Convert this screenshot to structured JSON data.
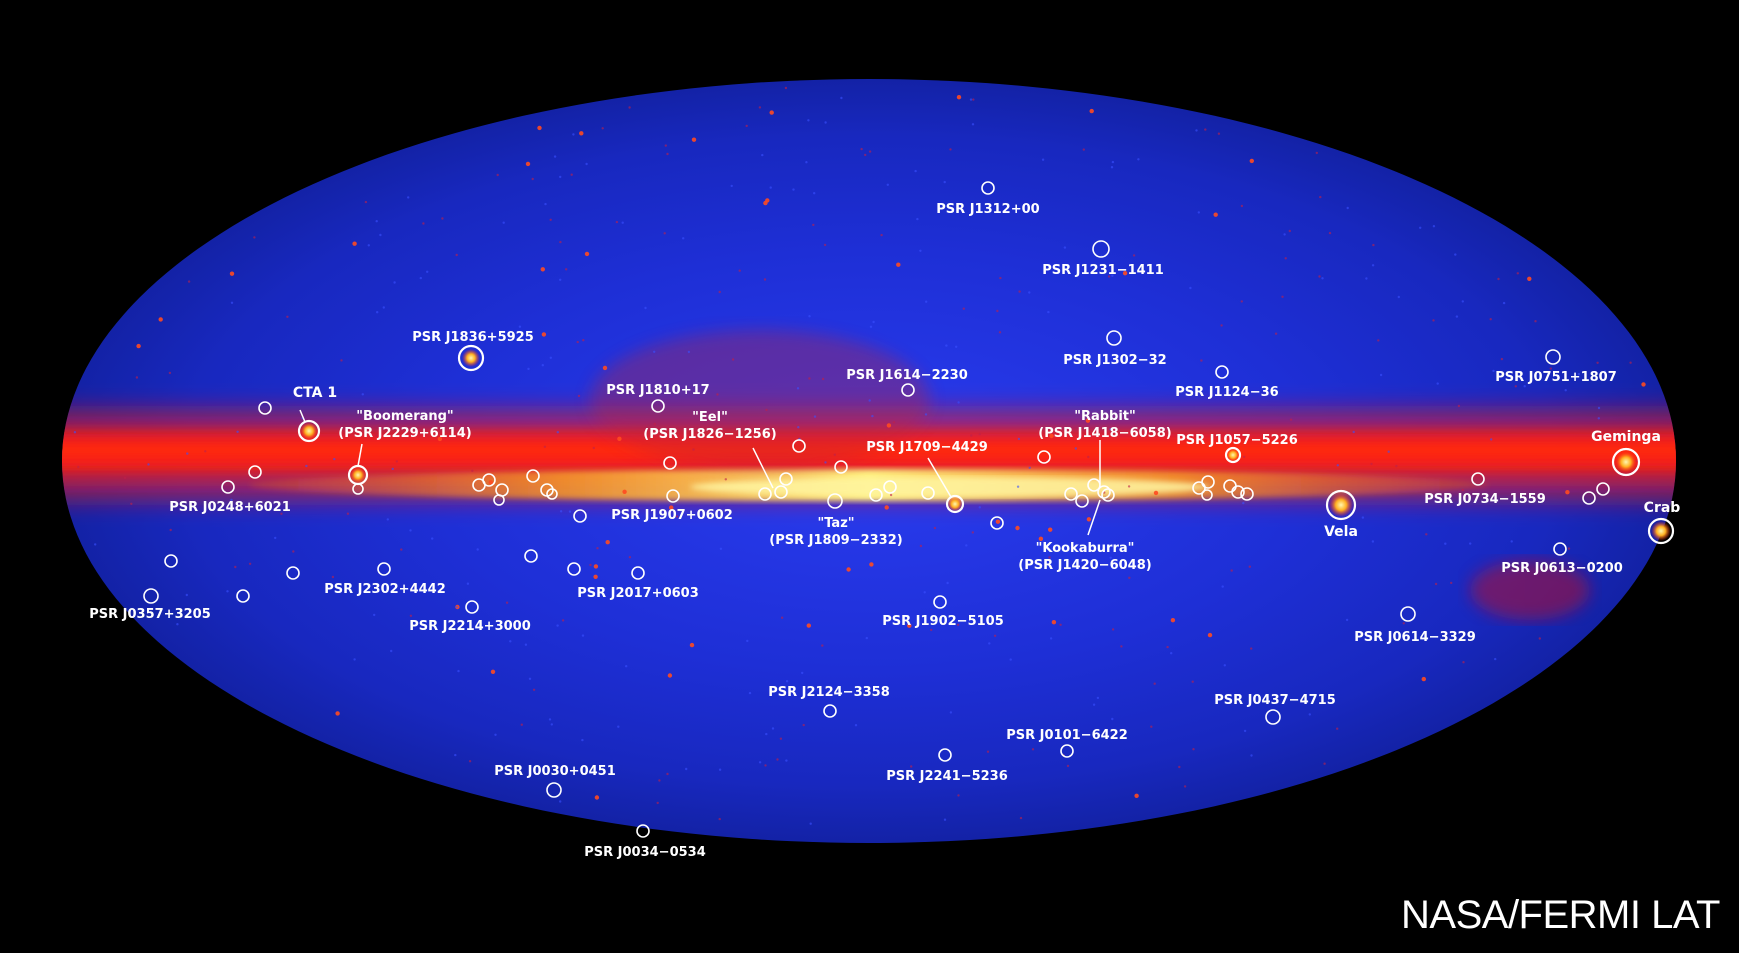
{
  "credit": "NASA/FERMI LAT",
  "colors": {
    "background": "#000000",
    "sky_blue": "#1f2fd8",
    "plane_red": "#ff2010",
    "plane_core": "#ffe060",
    "label": "#ffffff"
  },
  "labels": {
    "j1312": "PSR J1312+00",
    "j1231": "PSR J1231−1411",
    "j1836": "PSR J1836+5925",
    "j1302": "PSR J1302−32",
    "j0751": "PSR J0751+1807",
    "j1614": "PSR J1614−2230",
    "j1124": "PSR J1124−36",
    "cta1": "CTA 1",
    "j1810": "PSR J1810+17",
    "rabbit_name": "\"Rabbit\"",
    "rabbit_psr": "(PSR J1418−6058)",
    "boomerang_name": "\"Boomerang\"",
    "boomerang_psr": "(PSR J2229+6114)",
    "eel_name": "\"Eel\"",
    "eel_psr": "(PSR J1826−1256)",
    "j1709": "PSR J1709−4429",
    "j1057": "PSR J1057−5226",
    "geminga": "Geminga",
    "j0734": "PSR J0734−1559",
    "crab": "Crab",
    "j0248": "PSR J0248+6021",
    "j1907": "PSR J1907+0602",
    "taz_name": "\"Taz\"",
    "taz_psr": "(PSR J1809−2332)",
    "vela": "Vela",
    "kookaburra_name": "\"Kookaburra\"",
    "kookaburra_psr": "(PSR J1420−6048)",
    "j0613": "PSR J0613−0200",
    "j2302": "PSR J2302+4442",
    "j2017": "PSR J2017+0603",
    "j0357": "PSR J0357+3205",
    "j2214": "PSR J2214+3000",
    "j1902": "PSR J1902−5105",
    "j0614": "PSR J0614−3329",
    "j2124": "PSR J2124−3358",
    "j0437": "PSR J0437−4715",
    "j0101": "PSR J0101−6422",
    "j0030": "PSR J0030+0451",
    "j2241": "PSR J2241−5236",
    "j0034": "PSR J0034−0534"
  }
}
